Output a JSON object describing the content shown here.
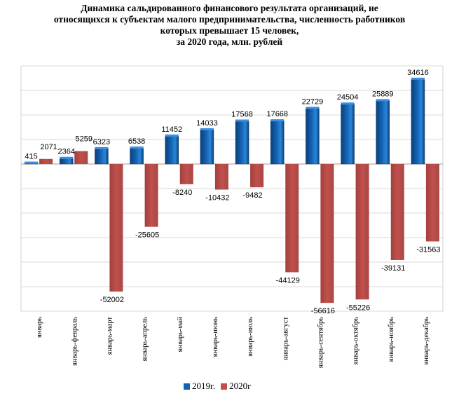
{
  "title_lines": [
    "Динамика сальдированного финансового результата организаций, не",
    "относящихся к субъектам малого предпринимательства, численность работников",
    "которых превышает 15 человек,",
    "за 2020 года, млн. рублей"
  ],
  "colors": {
    "2019": "#1464b4",
    "2020": "#c0504d"
  },
  "chart_data": {
    "type": "bar",
    "title": "Динамика сальдированного финансового результата организаций, не относящихся к субъектам малого предпринимательства, численность работников которых превышает 15 человек, за 2020 года, млн. рублей",
    "categories": [
      "январь",
      "январь-февраль",
      "январь-март",
      "январь-апрель",
      "январь-май",
      "январь-июнь",
      "январь-июль",
      "январь-август",
      "январь-сентябрь",
      "январь-октябрь",
      "январь-ноябрь",
      "январь-декабрь"
    ],
    "series": [
      {
        "name": "2019г.",
        "values": [
          415,
          2364,
          6323,
          6538,
          11452,
          14033,
          17568,
          17668,
          22729,
          24504,
          25889,
          34616
        ]
      },
      {
        "name": "2020г",
        "values": [
          2071,
          5259,
          -52002,
          -25605,
          -8240,
          -10432,
          -9482,
          -44129,
          -56616,
          -55226,
          -39131,
          -31563
        ]
      }
    ],
    "ylim": [
      -60000,
      40000
    ],
    "xlabel": "",
    "ylabel": "",
    "grid": true,
    "legend_position": "bottom"
  }
}
